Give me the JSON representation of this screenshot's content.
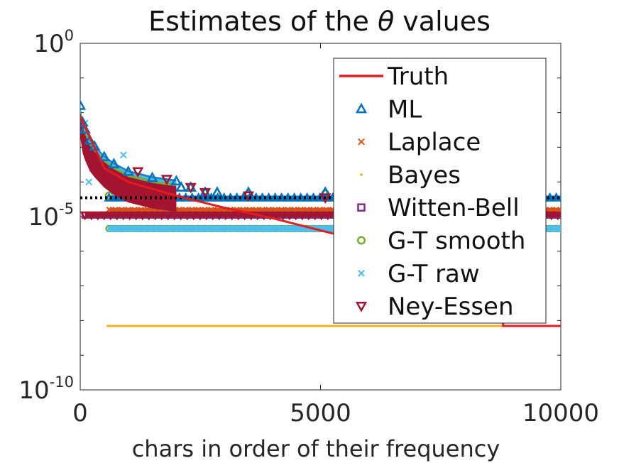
{
  "chart_data": {
    "type": "scatter",
    "title_prefix": "Estimates of the ",
    "title_symbol": "θ",
    "title_suffix": " values",
    "xlabel": "chars in order of their frequency",
    "ylabel": "",
    "xlim": [
      0,
      10000
    ],
    "ylim": [
      1e-10,
      1
    ],
    "yscale": "log",
    "grid": false,
    "legend_position": "top-right",
    "x_ticks": [
      {
        "value": 0,
        "label": "0"
      },
      {
        "value": 5000,
        "label": "5000"
      },
      {
        "value": 10000,
        "label": "10000"
      }
    ],
    "y_ticks": [
      {
        "value": 1,
        "base": "10",
        "exp": "0"
      },
      {
        "value": 1e-05,
        "base": "10",
        "exp": "-5"
      },
      {
        "value": 1e-10,
        "base": "10",
        "exp": "-10"
      }
    ],
    "reference_line": {
      "y": 3.5e-05,
      "style": "dotted",
      "color": "#000000"
    },
    "series": [
      {
        "name": "Truth",
        "marker": "line",
        "color": "#e41a1c",
        "x": [
          0,
          500,
          1000,
          2000,
          3000,
          4000,
          5000,
          6000,
          7000,
          8000,
          8800,
          8800,
          10000
        ],
        "y": [
          0.008,
          0.00025,
          0.0001,
          4e-05,
          1.8e-05,
          9e-06,
          4e-06,
          1.8e-06,
          9e-07,
          5e-07,
          3.5e-07,
          7e-09,
          7e-09
        ]
      },
      {
        "name": "ML",
        "marker": "triangle-up",
        "color": "#0072bd",
        "head_x": [
          0,
          50,
          100,
          200,
          300,
          500,
          700,
          1000,
          1500,
          2000
        ],
        "head_y": [
          0.012,
          0.004,
          0.0025,
          0.0012,
          0.0008,
          0.0004,
          0.00025,
          0.00015,
          0.0001,
          8e-05
        ],
        "clusters": [
          {
            "x": 2100,
            "y": 7e-05
          },
          {
            "x": 2300,
            "y": 7e-05
          },
          {
            "x": 2600,
            "y": 5e-05
          },
          {
            "x": 2850,
            "y": 5e-05
          },
          {
            "x": 3500,
            "y": 5e-05
          },
          {
            "x": 5100,
            "y": 5e-05
          }
        ],
        "plateau": {
          "x": [
            600,
            10000
          ],
          "y": 3.5e-05
        }
      },
      {
        "name": "Laplace",
        "marker": "x",
        "color": "#d95319",
        "plateau": {
          "x": [
            600,
            10000
          ],
          "y": 1.6e-05
        }
      },
      {
        "name": "Bayes",
        "marker": "dot",
        "color": "#edb120",
        "plateau": {
          "x": [
            550,
            10000
          ],
          "y": 7e-09
        }
      },
      {
        "name": "Witten-Bell",
        "marker": "square",
        "color": "#7e2f8e",
        "plateau": {
          "x": [
            100,
            10000
          ],
          "y": 1.1e-05
        }
      },
      {
        "name": "G-T smooth",
        "marker": "circle",
        "color": "#77ac30",
        "plateau": {
          "x": [
            600,
            10000
          ],
          "y": 4.5e-06
        },
        "clusters": [
          {
            "x": 600,
            "y": 4e-05
          },
          {
            "x": 3500,
            "y": 4.5e-05
          },
          {
            "x": 5100,
            "y": 4.5e-05
          }
        ]
      },
      {
        "name": "G-T raw",
        "marker": "x",
        "color": "#4dbeee",
        "plateau": {
          "x": [
            600,
            10000
          ],
          "y": 4.5e-06
        },
        "outliers": [
          {
            "x": 100,
            "y": 0.005
          },
          {
            "x": 180,
            "y": 0.0001
          },
          {
            "x": 900,
            "y": 0.0006
          }
        ]
      },
      {
        "name": "Ney-Essen",
        "marker": "triangle-down",
        "color": "#a2142f",
        "plateau": {
          "x": [
            100,
            10000
          ],
          "y": 1.1e-05
        },
        "clusters": [
          {
            "x": 1200,
            "y": 0.0002
          },
          {
            "x": 1800,
            "y": 0.00012
          },
          {
            "x": 2300,
            "y": 7e-05
          },
          {
            "x": 2600,
            "y": 5e-05
          },
          {
            "x": 3500,
            "y": 4e-05
          },
          {
            "x": 5100,
            "y": 3.5e-05
          }
        ]
      }
    ]
  }
}
